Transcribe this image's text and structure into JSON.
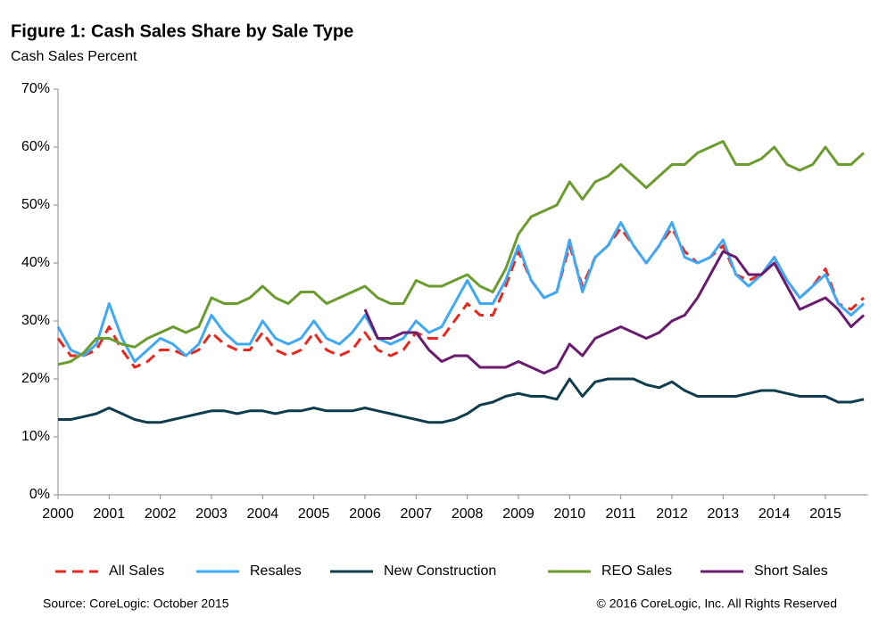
{
  "chart_data": {
    "type": "line",
    "title": "Figure 1: Cash Sales Share by Sale Type",
    "subtitle": "Cash Sales Percent",
    "source": "Source: CoreLogic: October 2015",
    "copyright": "© 2016 CoreLogic, Inc. All Rights Reserved",
    "x": [
      2000,
      2000.25,
      2000.5,
      2000.75,
      2001,
      2001.25,
      2001.5,
      2001.75,
      2002,
      2002.25,
      2002.5,
      2002.75,
      2003,
      2003.25,
      2003.5,
      2003.75,
      2004,
      2004.25,
      2004.5,
      2004.75,
      2005,
      2005.25,
      2005.5,
      2005.75,
      2006,
      2006.25,
      2006.5,
      2006.75,
      2007,
      2007.25,
      2007.5,
      2007.75,
      2008,
      2008.25,
      2008.5,
      2008.75,
      2009,
      2009.25,
      2009.5,
      2009.75,
      2010,
      2010.25,
      2010.5,
      2010.75,
      2011,
      2011.25,
      2011.5,
      2011.75,
      2012,
      2012.25,
      2012.5,
      2012.75,
      2013,
      2013.25,
      2013.5,
      2013.75,
      2014,
      2014.25,
      2014.5,
      2014.75,
      2015,
      2015.25,
      2015.5,
      2015.75
    ],
    "series": [
      {
        "name": "All Sales",
        "color": "#e8281e",
        "dashed": true,
        "values": [
          27,
          24,
          24,
          25,
          29,
          25,
          22,
          23,
          25,
          25,
          24,
          25,
          28,
          26,
          25,
          25,
          28,
          25,
          24,
          25,
          28,
          25,
          24,
          25,
          28,
          25,
          24,
          25,
          28,
          27,
          27,
          30,
          33,
          31,
          31,
          36,
          42,
          37,
          34,
          35,
          43,
          36,
          41,
          43,
          46,
          43,
          40,
          43,
          46,
          42,
          40,
          41,
          43,
          38,
          37,
          38,
          41,
          37,
          34,
          36,
          39,
          33,
          32,
          34
        ]
      },
      {
        "name": "Resales",
        "color": "#3fa9f5",
        "dashed": false,
        "values": [
          29,
          25,
          24,
          26,
          33,
          27,
          23,
          25,
          27,
          26,
          24,
          26,
          31,
          28,
          26,
          26,
          30,
          27,
          26,
          27,
          30,
          27,
          26,
          28,
          31,
          27,
          26,
          27,
          30,
          28,
          29,
          33,
          37,
          33,
          33,
          37,
          43,
          37,
          34,
          35,
          44,
          35,
          41,
          43,
          47,
          43,
          40,
          43,
          47,
          41,
          40,
          41,
          44,
          38,
          36,
          38,
          41,
          37,
          34,
          36,
          38,
          33,
          31,
          33
        ]
      },
      {
        "name": "New Construction",
        "color": "#0f3d4f",
        "dashed": false,
        "values": [
          13,
          13,
          13.5,
          14,
          15,
          14,
          13,
          12.5,
          12.5,
          13,
          13.5,
          14,
          14.5,
          14.5,
          14,
          14.5,
          14.5,
          14,
          14.5,
          14.5,
          15,
          14.5,
          14.5,
          14.5,
          15,
          14.5,
          14,
          13.5,
          13,
          12.5,
          12.5,
          13,
          14,
          15.5,
          16,
          17,
          17.5,
          17,
          17,
          16.5,
          20,
          17,
          19.5,
          20,
          20,
          20,
          19,
          18.5,
          19.5,
          18,
          17,
          17,
          17,
          17,
          17.5,
          18,
          18,
          17.5,
          17,
          17,
          17,
          16,
          16,
          16.5
        ]
      },
      {
        "name": "REO Sales",
        "color": "#6a9c2e",
        "dashed": false,
        "values": [
          22.5,
          23,
          24.5,
          27,
          27,
          26,
          25.5,
          27,
          28,
          29,
          28,
          29,
          34,
          33,
          33,
          34,
          36,
          34,
          33,
          35,
          35,
          33,
          34,
          35,
          36,
          34,
          33,
          33,
          37,
          36,
          36,
          37,
          38,
          36,
          35,
          39,
          45,
          48,
          49,
          50,
          54,
          51,
          54,
          55,
          57,
          55,
          53,
          55,
          57,
          57,
          59,
          60,
          61,
          57,
          57,
          58,
          60,
          57,
          56,
          57,
          60,
          57,
          57,
          59
        ]
      },
      {
        "name": "Short Sales",
        "color": "#6a1b6e",
        "dashed": false,
        "values": [
          null,
          null,
          null,
          null,
          null,
          null,
          null,
          null,
          null,
          null,
          null,
          null,
          null,
          null,
          null,
          null,
          null,
          null,
          null,
          null,
          null,
          null,
          null,
          null,
          32,
          27,
          27,
          28,
          28,
          25,
          23,
          24,
          24,
          22,
          22,
          22,
          23,
          22,
          21,
          22,
          26,
          24,
          27,
          28,
          29,
          28,
          27,
          28,
          30,
          31,
          34,
          38,
          42,
          41,
          38,
          38,
          40,
          36,
          32,
          33,
          34,
          32,
          29,
          31
        ]
      }
    ],
    "xlim": [
      2000,
      2015.83
    ],
    "xticks": [
      2000,
      2001,
      2002,
      2003,
      2004,
      2005,
      2006,
      2007,
      2008,
      2009,
      2010,
      2011,
      2012,
      2013,
      2014,
      2015
    ],
    "ylim": [
      0,
      70
    ],
    "yticks": [
      {
        "value": 0,
        "label": "0%"
      },
      {
        "value": 10,
        "label": "10%"
      },
      {
        "value": 20,
        "label": "20%"
      },
      {
        "value": 30,
        "label": "30%"
      },
      {
        "value": 40,
        "label": "40%"
      },
      {
        "value": 50,
        "label": "50%"
      },
      {
        "value": 60,
        "label": "60%"
      },
      {
        "value": 70,
        "label": "70%"
      }
    ],
    "legend": "bottom",
    "grid": false
  }
}
